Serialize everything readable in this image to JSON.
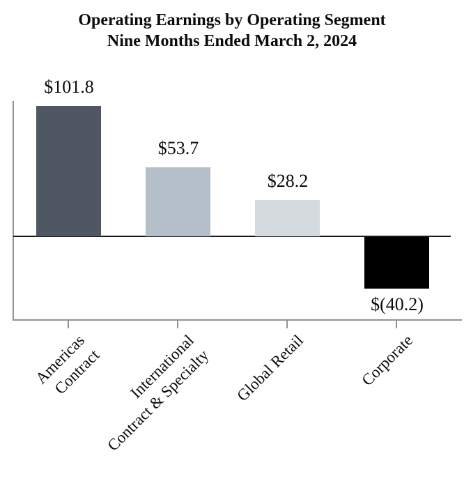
{
  "chart_data": {
    "type": "bar",
    "title": "Operating Earnings by Operating Segment",
    "subtitle": "Nine Months Ended March 2, 2024",
    "categories": [
      "Americas Contract",
      "International Contract & Specialty",
      "Global Retail",
      "Corporate"
    ],
    "category_lines": [
      [
        "Americas",
        "Contract"
      ],
      [
        "International",
        "Contract & Specialty"
      ],
      [
        "Global Retail"
      ],
      [
        "Corporate"
      ]
    ],
    "values": [
      101.8,
      53.7,
      28.2,
      -40.2
    ],
    "value_labels": [
      "$101.8",
      "$53.7",
      "$28.2",
      "$(40.2)"
    ],
    "bar_colors": [
      "#4f5862",
      "#b5bfc9",
      "#d4dade",
      "#000000"
    ],
    "xlabel": "",
    "ylabel": "",
    "ylim": [
      -65,
      106
    ],
    "grid": false,
    "legend": false,
    "axis_color": "#919191",
    "zero_line_color": "#1a1a1a"
  }
}
